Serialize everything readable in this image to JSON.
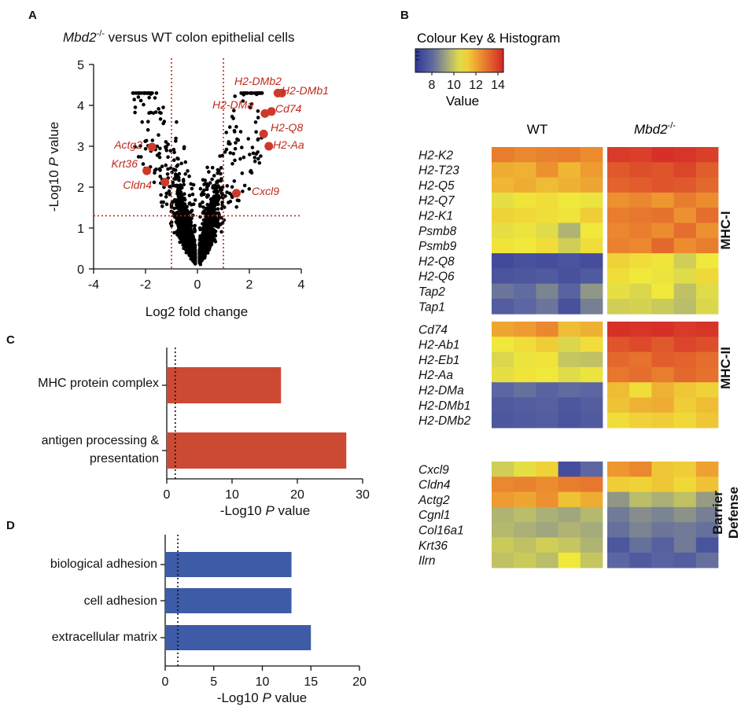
{
  "panels": {
    "a": "A",
    "b": "B",
    "c": "C",
    "d": "D"
  },
  "colors": {
    "accent_red": "#c0281c",
    "bar_red": "#cc4a33",
    "bar_blue": "#3d5ba6",
    "point": "#000000"
  },
  "chart_data": [
    {
      "type": "scatter",
      "title_gene": "Mbd2",
      "title_sup": "-/-",
      "title_rest": " versus WT colon epithelial cells",
      "xlabel": "Log2 fold change",
      "ylabel_pre": "-Log10 ",
      "ylabel_p": "P",
      "ylabel_post": " value",
      "xlim": [
        -4,
        4
      ],
      "ylim": [
        0,
        5
      ],
      "xticks": [
        "-4",
        "-2",
        "0",
        "2",
        "4"
      ],
      "yticks": [
        "0",
        "1",
        "2",
        "3",
        "4",
        "5"
      ],
      "thresholds": {
        "x": [
          -1,
          1
        ],
        "y": 1.3
      },
      "highlighted": [
        {
          "label": "H2-DMb2",
          "x": 3.1,
          "y": 4.3
        },
        {
          "label": "H2-DMb1",
          "x": 3.25,
          "y": 4.3
        },
        {
          "label": "H2-DMa",
          "x": 2.6,
          "y": 3.8
        },
        {
          "label": "Cd74",
          "x": 2.85,
          "y": 3.85
        },
        {
          "label": "H2-Q8",
          "x": 2.55,
          "y": 3.3
        },
        {
          "label": "H2-Aa",
          "x": 2.75,
          "y": 3.0
        },
        {
          "label": "Actg2",
          "x": -1.75,
          "y": 2.98
        },
        {
          "label": "Krt36",
          "x": -1.95,
          "y": 2.4
        },
        {
          "label": "Cldn4",
          "x": -1.25,
          "y": 2.12
        },
        {
          "label": "Cxcl9",
          "x": 1.5,
          "y": 1.85
        }
      ]
    },
    {
      "type": "heatmap",
      "key_title": "Colour Key & Histogram",
      "key_ticks": [
        "8",
        "10",
        "12",
        "14"
      ],
      "key_range": [
        6.5,
        14.5
      ],
      "key_label": "Value",
      "wt_label": "WT",
      "ko_gene": "Mbd2",
      "ko_sup": "-/-",
      "groups": [
        {
          "name": "MHC-I",
          "genes": [
            "H2-K2",
            "H2-T23",
            "H2-Q5",
            "H2-Q7",
            "H2-K1",
            "Psmb8",
            "Psmb9",
            "H2-Q8",
            "H2-Q6",
            "Tap2",
            "Tap1"
          ],
          "wt": [
            [
              12.8,
              12.6,
              12.7,
              12.8,
              12.5
            ],
            [
              11.9,
              11.8,
              12.4,
              11.7,
              12.2
            ],
            [
              11.7,
              11.9,
              11.6,
              11.8,
              12.0
            ],
            [
              10.6,
              10.9,
              11.0,
              10.8,
              10.7
            ],
            [
              11.2,
              11.1,
              11.0,
              10.9,
              11.3
            ],
            [
              10.6,
              10.7,
              10.5,
              9.6,
              10.8
            ],
            [
              10.9,
              10.8,
              11.0,
              10.2,
              11.0
            ],
            [
              7.1,
              7.3,
              7.2,
              7.4,
              7.2
            ],
            [
              7.4,
              7.5,
              7.6,
              7.3,
              7.6
            ],
            [
              8.3,
              8.1,
              8.6,
              7.9,
              9.0
            ],
            [
              7.7,
              8.0,
              8.3,
              7.3,
              8.5
            ]
          ],
          "ko": [
            [
              14.1,
              14.0,
              14.3,
              14.2,
              14.0
            ],
            [
              13.5,
              13.7,
              13.6,
              13.9,
              13.4
            ],
            [
              13.3,
              13.4,
              13.6,
              13.5,
              13.2
            ],
            [
              12.4,
              12.6,
              12.3,
              12.8,
              12.5
            ],
            [
              12.8,
              12.9,
              13.0,
              12.4,
              13.1
            ],
            [
              12.6,
              12.8,
              12.5,
              13.1,
              12.4
            ],
            [
              12.7,
              12.6,
              13.2,
              12.5,
              12.8
            ],
            [
              11.2,
              11.0,
              10.9,
              10.2,
              10.8
            ],
            [
              11.0,
              10.8,
              10.7,
              10.5,
              11.1
            ],
            [
              10.6,
              10.4,
              10.8,
              9.9,
              10.5
            ],
            [
              10.2,
              10.3,
              10.1,
              9.8,
              10.4
            ]
          ]
        },
        {
          "name": "MHC-II",
          "genes": [
            "Cd74",
            "H2-Ab1",
            "H2-Eb1",
            "H2-Aa",
            "H2-DMa",
            "H2-DMb1",
            "H2-DMb2"
          ],
          "wt": [
            [
              12.0,
              12.2,
              12.6,
              11.6,
              11.8
            ],
            [
              10.8,
              11.0,
              11.3,
              10.4,
              11.0
            ],
            [
              10.4,
              10.7,
              10.9,
              10.0,
              9.9
            ],
            [
              10.6,
              10.9,
              10.8,
              10.5,
              10.7
            ],
            [
              8.0,
              8.2,
              7.9,
              8.1,
              8.0
            ],
            [
              7.6,
              7.7,
              7.8,
              7.5,
              7.7
            ],
            [
              7.5,
              7.6,
              7.7,
              7.4,
              7.6
            ]
          ],
          "ko": [
            [
              14.3,
              14.2,
              14.3,
              14.1,
              14.2
            ],
            [
              13.6,
              13.8,
              13.5,
              13.9,
              13.7
            ],
            [
              13.2,
              13.0,
              13.4,
              13.3,
              13.1
            ],
            [
              12.9,
              13.1,
              12.8,
              13.2,
              13.0
            ],
            [
              11.6,
              11.0,
              11.8,
              11.4,
              11.2
            ],
            [
              11.5,
              11.8,
              11.9,
              11.3,
              11.6
            ],
            [
              11.0,
              11.2,
              11.3,
              11.1,
              11.4
            ]
          ]
        },
        {
          "name_line1": "Barrier",
          "name_line2": "Defense",
          "genes": [
            "Cxcl9",
            "Cldn4",
            "Actg2",
            "Cgnl1",
            "Col16a1",
            "Krt36",
            "Ilrn"
          ],
          "wt": [
            [
              10.2,
              10.6,
              11.2,
              7.2,
              8.0
            ],
            [
              12.6,
              12.7,
              12.5,
              12.8,
              12.9
            ],
            [
              12.2,
              12.0,
              12.4,
              11.5,
              11.9
            ],
            [
              9.6,
              9.8,
              9.5,
              9.3,
              9.7
            ],
            [
              9.7,
              9.5,
              9.3,
              9.6,
              9.4
            ],
            [
              10.1,
              9.9,
              10.2,
              10.0,
              9.6
            ],
            [
              9.9,
              10.1,
              9.8,
              10.8,
              10.0
            ]
          ],
          "ko": [
            [
              12.3,
              12.6,
              11.4,
              11.3,
              12.1
            ],
            [
              11.3,
              11.2,
              11.4,
              11.1,
              11.5
            ],
            [
              9.0,
              9.8,
              9.5,
              9.9,
              9.1
            ],
            [
              8.4,
              8.8,
              8.6,
              8.9,
              8.5
            ],
            [
              8.2,
              8.6,
              8.3,
              8.4,
              8.2
            ],
            [
              7.5,
              8.2,
              7.8,
              8.4,
              7.4
            ],
            [
              8.0,
              7.6,
              7.9,
              7.7,
              8.2
            ]
          ]
        }
      ]
    },
    {
      "type": "bar",
      "orientation": "horizontal",
      "categories": [
        {
          "line1": "MHC protein complex",
          "line2": ""
        },
        {
          "line1": "antigen processing &",
          "line2": "presentation"
        }
      ],
      "values": [
        17.5,
        27.5
      ],
      "xlim": [
        0,
        30
      ],
      "xticks": [
        "0",
        "10",
        "20",
        "30"
      ],
      "threshold": 1.3,
      "xlabel_pre": "-Log10 ",
      "xlabel_p": "P",
      "xlabel_post": " value"
    },
    {
      "type": "bar",
      "orientation": "horizontal",
      "categories": [
        "biological adhesion",
        "cell adhesion",
        "extracellular matrix"
      ],
      "values": [
        13,
        13,
        15
      ],
      "xlim": [
        0,
        20
      ],
      "xticks": [
        "0",
        "5",
        "10",
        "15",
        "20"
      ],
      "threshold": 1.3,
      "xlabel_pre": "-Log10 ",
      "xlabel_p": "P",
      "xlabel_post": " value"
    }
  ]
}
